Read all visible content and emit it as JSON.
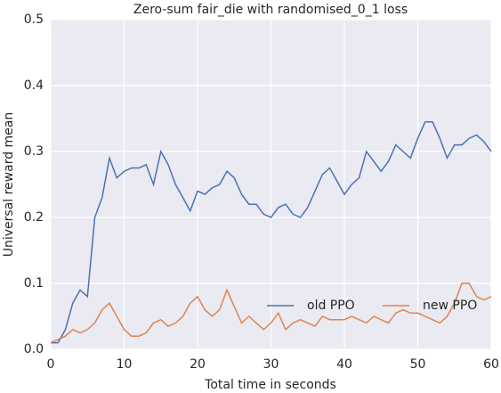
{
  "chart_data": {
    "type": "line",
    "title": "Zero-sum fair_die with randomised_0_1 loss",
    "xlabel": "Total time in seconds",
    "ylabel": "Universal reward mean",
    "x": [
      0,
      1,
      2,
      3,
      4,
      5,
      6,
      7,
      8,
      9,
      10,
      11,
      12,
      13,
      14,
      15,
      16,
      17,
      18,
      19,
      20,
      21,
      22,
      23,
      24,
      25,
      26,
      27,
      28,
      29,
      30,
      31,
      32,
      33,
      34,
      35,
      36,
      37,
      38,
      39,
      40,
      41,
      42,
      43,
      44,
      45,
      46,
      47,
      48,
      49,
      50,
      51,
      52,
      53,
      54,
      55,
      56,
      57,
      58,
      59,
      60
    ],
    "series": [
      {
        "name": "old PPO",
        "color": "#4c72b0",
        "values": [
          0.01,
          0.01,
          0.03,
          0.07,
          0.09,
          0.08,
          0.2,
          0.23,
          0.29,
          0.26,
          0.27,
          0.275,
          0.275,
          0.28,
          0.25,
          0.3,
          0.28,
          0.25,
          0.23,
          0.21,
          0.24,
          0.235,
          0.245,
          0.25,
          0.27,
          0.26,
          0.235,
          0.22,
          0.22,
          0.205,
          0.2,
          0.215,
          0.22,
          0.205,
          0.2,
          0.215,
          0.24,
          0.265,
          0.275,
          0.255,
          0.235,
          0.25,
          0.26,
          0.3,
          0.285,
          0.27,
          0.285,
          0.31,
          0.3,
          0.29,
          0.32,
          0.345,
          0.345,
          0.32,
          0.29,
          0.31,
          0.31,
          0.32,
          0.325,
          0.315,
          0.3
        ]
      },
      {
        "name": "new PPO",
        "color": "#dd8452",
        "values": [
          0.01,
          0.015,
          0.02,
          0.03,
          0.025,
          0.03,
          0.04,
          0.06,
          0.07,
          0.05,
          0.03,
          0.02,
          0.02,
          0.025,
          0.04,
          0.045,
          0.035,
          0.04,
          0.05,
          0.07,
          0.08,
          0.06,
          0.05,
          0.06,
          0.09,
          0.065,
          0.04,
          0.05,
          0.04,
          0.03,
          0.04,
          0.055,
          0.03,
          0.04,
          0.045,
          0.04,
          0.035,
          0.05,
          0.045,
          0.045,
          0.045,
          0.05,
          0.045,
          0.04,
          0.05,
          0.045,
          0.04,
          0.055,
          0.06,
          0.055,
          0.055,
          0.05,
          0.045,
          0.04,
          0.05,
          0.07,
          0.1,
          0.1,
          0.08,
          0.075,
          0.08
        ]
      }
    ],
    "xlim": [
      0,
      60
    ],
    "xticks": [
      0,
      10,
      20,
      30,
      40,
      50,
      60
    ],
    "ylim": [
      0,
      0.5
    ],
    "yticks": [
      {
        "value": 0,
        "label": "0.0"
      },
      0.1,
      0.2,
      0.3,
      0.4,
      0.5
    ],
    "grid": true,
    "legend": "lower right"
  }
}
